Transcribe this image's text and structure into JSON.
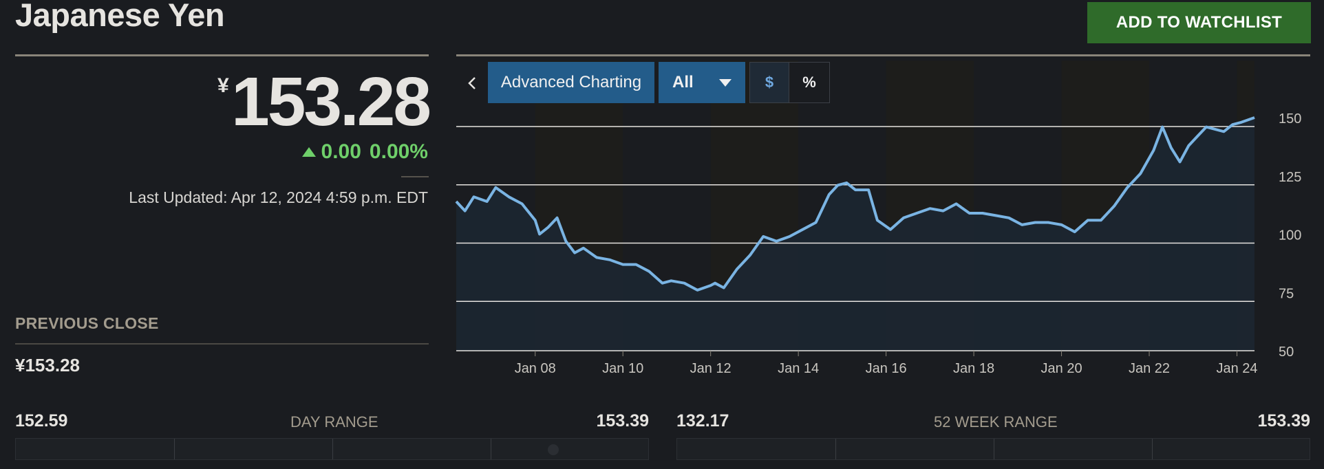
{
  "header": {
    "title": "Japanese Yen",
    "watchlist_label": "ADD TO WATCHLIST"
  },
  "quote": {
    "currency_symbol": "¥",
    "price": "153.28",
    "change": "0.00",
    "change_pct": "0.00%",
    "last_updated": "Last Updated: Apr 12, 2024 4:59 p.m. EDT",
    "up_color": "#6fcf6a"
  },
  "previous_close": {
    "label": "PREVIOUS CLOSE",
    "value": "¥153.28"
  },
  "chart_controls": {
    "back_icon": "chevron-left-icon",
    "advanced_label": "Advanced Charting",
    "range_label": "All",
    "usd_label": "$",
    "pct_label": "%"
  },
  "day_range": {
    "low": "152.59",
    "label": "DAY RANGE",
    "high": "153.39"
  },
  "week52_range": {
    "low": "132.17",
    "label": "52 WEEK RANGE",
    "high": "153.39"
  },
  "chart_data": {
    "type": "area",
    "title": "",
    "xlabel": "",
    "ylabel": "",
    "y_ticks": [
      "150",
      "125",
      "100",
      "75",
      "50"
    ],
    "x_ticks": [
      "Jan 08",
      "Jan 10",
      "Jan 12",
      "Jan 14",
      "Jan 16",
      "Jan 18",
      "Jan 20",
      "Jan 22",
      "Jan 24"
    ],
    "ylim": [
      50,
      155
    ],
    "xlim": [
      2006.1,
      2024.3
    ],
    "line_color": "#7ab4e3",
    "fill_color": "#1c2733",
    "series": [
      {
        "x": [
          2006.1,
          2006.3,
          2006.5,
          2006.8,
          2007.0,
          2007.3,
          2007.6,
          2007.9,
          2008.0,
          2008.2,
          2008.4,
          2008.6,
          2008.8,
          2009.0,
          2009.3,
          2009.6,
          2009.9,
          2010.2,
          2010.5,
          2010.8,
          2011.0,
          2011.3,
          2011.6,
          2011.9,
          2012.0,
          2012.2,
          2012.5,
          2012.8,
          2013.1,
          2013.4,
          2013.7,
          2014.0,
          2014.3,
          2014.6,
          2014.8,
          2015.0,
          2015.2,
          2015.5,
          2015.7,
          2016.0,
          2016.3,
          2016.6,
          2016.9,
          2017.2,
          2017.5,
          2017.8,
          2018.1,
          2018.4,
          2018.7,
          2019.0,
          2019.3,
          2019.6,
          2019.9,
          2020.2,
          2020.5,
          2020.8,
          2021.1,
          2021.4,
          2021.7,
          2022.0,
          2022.2,
          2022.4,
          2022.6,
          2022.8,
          2023.0,
          2023.2,
          2023.4,
          2023.6,
          2023.8,
          2024.0,
          2024.3
        ],
        "y": [
          114,
          110,
          116,
          114,
          120,
          116,
          113,
          106,
          100,
          103,
          107,
          97,
          92,
          94,
          90,
          89,
          87,
          87,
          84,
          79,
          80,
          79,
          76,
          78,
          79,
          77,
          85,
          91,
          99,
          97,
          99,
          102,
          105,
          117,
          121,
          122,
          119,
          119,
          106,
          102,
          107,
          109,
          111,
          110,
          113,
          109,
          109,
          108,
          107,
          104,
          105,
          105,
          104,
          101,
          106,
          106,
          112,
          120,
          126,
          136,
          146,
          137,
          131,
          138,
          142,
          146,
          145,
          144,
          147,
          148,
          150
        ]
      }
    ]
  }
}
